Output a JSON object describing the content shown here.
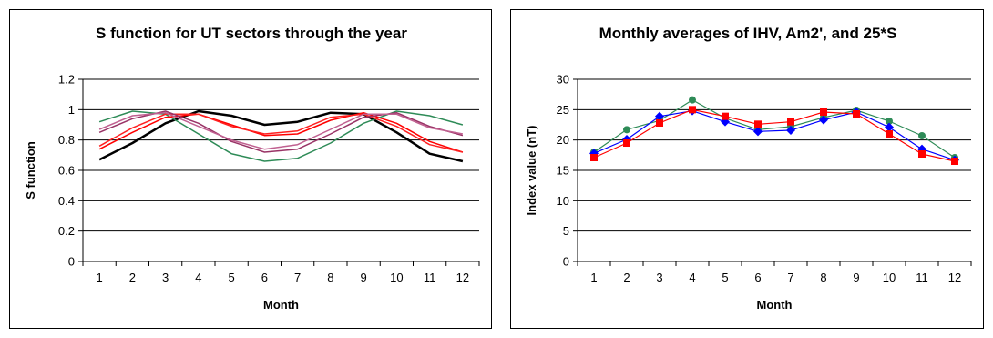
{
  "chart_data": [
    {
      "type": "line",
      "title": "S function for UT sectors through the year",
      "xlabel": "Month",
      "ylabel": "S function",
      "ylim": [
        0,
        1.2
      ],
      "yticks": [
        0,
        0.2,
        0.4,
        0.6,
        0.8,
        1,
        1.2
      ],
      "ytick_labels": [
        "0",
        "0.2",
        "0.4",
        "0.6",
        "0.8",
        "1",
        "1.2"
      ],
      "categories": [
        "1",
        "2",
        "3",
        "4",
        "5",
        "6",
        "7",
        "8",
        "9",
        "10",
        "11",
        "12"
      ],
      "grid": true,
      "legend": "none",
      "series": [
        {
          "color": "#000000",
          "width": 2.5,
          "values": [
            0.67,
            0.78,
            0.91,
            0.99,
            0.96,
            0.9,
            0.92,
            0.98,
            0.97,
            0.85,
            0.71,
            0.66
          ]
        },
        {
          "color": "#2e8b57",
          "width": 1.5,
          "values": [
            0.92,
            0.99,
            0.97,
            0.84,
            0.71,
            0.66,
            0.68,
            0.78,
            0.91,
            0.99,
            0.96,
            0.9
          ]
        },
        {
          "color": "#ff0000",
          "width": 1.5,
          "values": [
            0.74,
            0.85,
            0.95,
            0.97,
            0.9,
            0.83,
            0.84,
            0.93,
            0.98,
            0.91,
            0.79,
            0.72
          ]
        },
        {
          "color": "#ff2020",
          "width": 1.5,
          "values": [
            0.76,
            0.88,
            0.97,
            0.97,
            0.89,
            0.84,
            0.86,
            0.95,
            0.97,
            0.89,
            0.77,
            0.72
          ]
        },
        {
          "color": "#993366",
          "width": 1.5,
          "values": [
            0.85,
            0.94,
            0.99,
            0.91,
            0.79,
            0.72,
            0.74,
            0.84,
            0.95,
            0.98,
            0.89,
            0.83
          ]
        },
        {
          "color": "#c06090",
          "width": 1.5,
          "values": [
            0.87,
            0.96,
            0.98,
            0.89,
            0.8,
            0.74,
            0.77,
            0.87,
            0.97,
            0.97,
            0.88,
            0.84
          ]
        }
      ]
    },
    {
      "type": "line",
      "title": "Monthly averages of IHV, Am2', and 25*S",
      "xlabel": "Month",
      "ylabel": "Index value (nT)",
      "ylim": [
        0,
        30
      ],
      "yticks": [
        0,
        5,
        10,
        15,
        20,
        25,
        30
      ],
      "ytick_labels": [
        "0",
        "5",
        "10",
        "15",
        "20",
        "25",
        "30"
      ],
      "categories": [
        "1",
        "2",
        "3",
        "4",
        "5",
        "6",
        "7",
        "8",
        "9",
        "10",
        "11",
        "12"
      ],
      "grid": true,
      "legend": "none",
      "series": [
        {
          "color": "#2e8b57",
          "marker": "circle",
          "width": 1.2,
          "values": [
            18.0,
            21.7,
            23.2,
            26.6,
            23.6,
            21.7,
            22.2,
            23.7,
            24.9,
            23.1,
            20.7,
            17.1
          ]
        },
        {
          "color": "#0000ff",
          "marker": "diamond",
          "width": 1.2,
          "values": [
            17.8,
            20.1,
            23.9,
            24.8,
            23.0,
            21.4,
            21.6,
            23.3,
            24.6,
            22.1,
            18.5,
            16.7
          ]
        },
        {
          "color": "#ff0000",
          "marker": "square",
          "width": 1.2,
          "values": [
            17.1,
            19.5,
            22.8,
            25.0,
            23.9,
            22.6,
            23.0,
            24.6,
            24.3,
            21.0,
            17.7,
            16.5
          ]
        }
      ]
    }
  ]
}
